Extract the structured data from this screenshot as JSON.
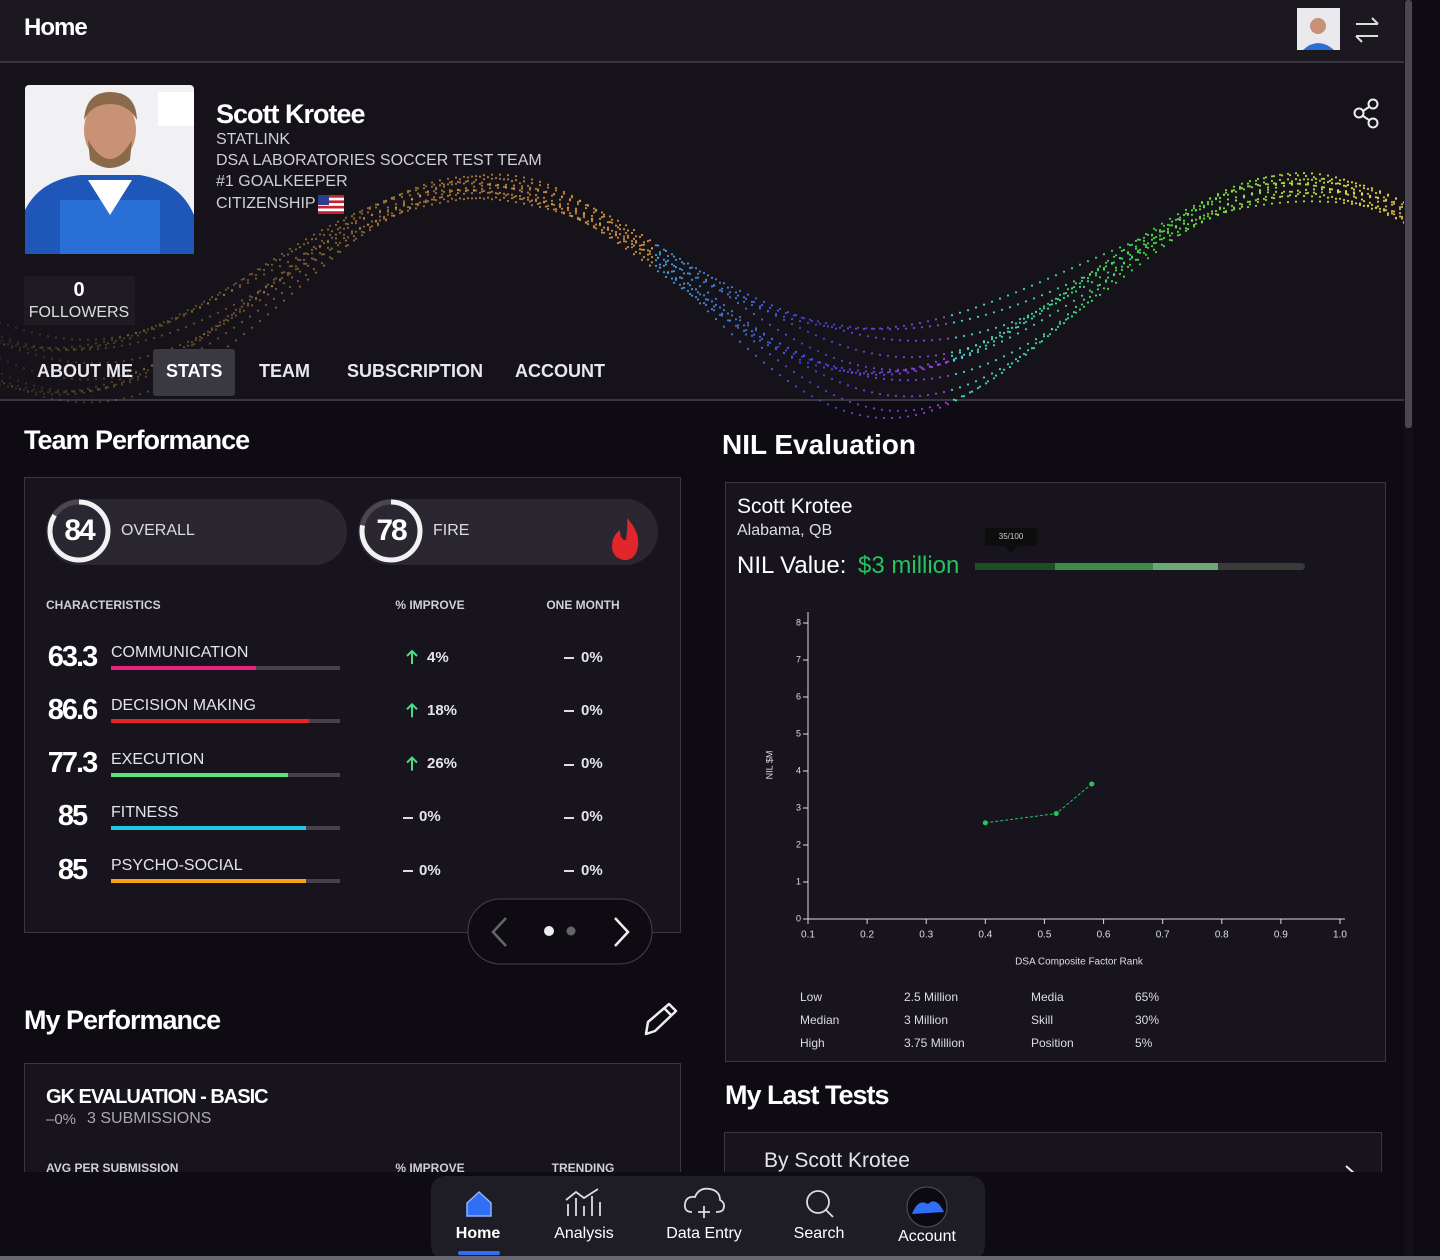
{
  "header": {
    "title": "Home"
  },
  "profile": {
    "name": "Scott Krotee",
    "org": "STATLINK",
    "team": "DSA LABORATORIES SOCCER TEST TEAM",
    "position": "#1 GOALKEEPER",
    "citizenship": "CITIZENSHIP",
    "followers": {
      "count": 0,
      "label": "FOLLOWERS"
    }
  },
  "tabs": [
    "ABOUT ME",
    "STATS",
    "TEAM",
    "SUBSCRIPTION",
    "ACCOUNT"
  ],
  "active_tab": 1,
  "team_performance": {
    "title": "Team Performance",
    "scores": [
      {
        "value": 84,
        "label": "OVERALL"
      },
      {
        "value": 78,
        "label": "FIRE"
      }
    ],
    "columns": [
      "CHARACTERISTICS",
      "% IMPROVE",
      "ONE MONTH"
    ],
    "rows": [
      {
        "score": 63.3,
        "name": "COMMUNICATION",
        "color": "#e8207e",
        "improve": "4%",
        "trend": "up",
        "one_month": "0%"
      },
      {
        "score": 86.6,
        "name": "DECISION MAKING",
        "color": "#e02626",
        "improve": "18%",
        "trend": "up",
        "one_month": "0%"
      },
      {
        "score": 77.3,
        "name": "EXECUTION",
        "color": "#5be37a",
        "improve": "26%",
        "trend": "up",
        "one_month": "0%"
      },
      {
        "score": 85,
        "name": "FITNESS",
        "color": "#19c9e6",
        "improve": "0%",
        "trend": "flat",
        "one_month": "0%"
      },
      {
        "score": 85,
        "name": "PSYCHO-SOCIAL",
        "color": "#f5a11a",
        "improve": "0%",
        "trend": "flat",
        "one_month": "0%"
      }
    ]
  },
  "my_performance": {
    "title": "My Performance",
    "card": {
      "title": "GK EVALUATION - BASIC",
      "change": "–0%",
      "submissions": "3 SUBMISSIONS",
      "columns": [
        "AVG PER SUBMISSION",
        "% IMPROVE",
        "TRENDING"
      ]
    }
  },
  "nil_evaluation": {
    "title": "NIL Evaluation",
    "name": "Scott Krotee",
    "location": "Alabama, QB",
    "value_label": "NIL Value:",
    "value": "$3 million",
    "rank": "35/100",
    "table": [
      [
        "Low",
        "2.5 Million",
        "Media",
        "65%"
      ],
      [
        "Median",
        "3 Million",
        "Skill",
        "30%"
      ],
      [
        "High",
        "3.75 Million",
        "Position",
        "5%"
      ]
    ]
  },
  "chart_data": {
    "type": "line",
    "xlabel": "DSA Composite Factor Rank",
    "ylabel": "NIL $M",
    "x": [
      0.4,
      0.52,
      0.58
    ],
    "values": [
      2.6,
      2.85,
      3.65
    ],
    "color": "#22c55e",
    "xlim": [
      0.1,
      1
    ],
    "ylim": [
      0,
      8
    ],
    "xticks": [
      0.1,
      0.2,
      0.3,
      0.4,
      0.5,
      0.6,
      0.7,
      0.8,
      0.9,
      {
        "value": 1,
        "label": "1.0"
      }
    ],
    "yticks": [
      0,
      1,
      2,
      3,
      4,
      5,
      6,
      7,
      8
    ]
  },
  "last_tests": {
    "title": "My Last Tests",
    "item": "By Scott Krotee"
  },
  "nav": [
    "Home",
    "Analysis",
    "Data Entry",
    "Search",
    "Account"
  ],
  "active_nav": 0
}
